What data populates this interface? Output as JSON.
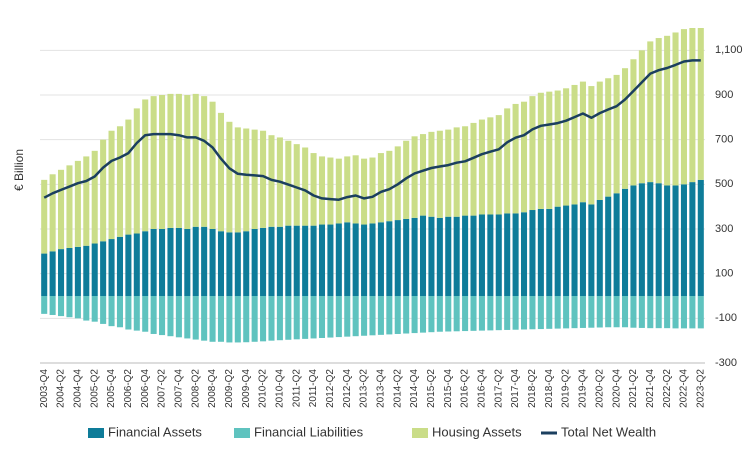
{
  "chart_data": {
    "type": "bar",
    "stacked": true,
    "y_label": "€ Billion",
    "categories": [
      "2003-Q4",
      null,
      "2004-Q2",
      null,
      "2004-Q4",
      null,
      "2005-Q2",
      null,
      "2005-Q4",
      null,
      "2006-Q2",
      null,
      "2006-Q4",
      null,
      "2007-Q2",
      null,
      "2007-Q4",
      null,
      "2008-Q2",
      null,
      "2008-Q4",
      null,
      "2009-Q2",
      null,
      "2009-Q4",
      null,
      "2010-Q2",
      null,
      "2010-Q4",
      null,
      "2011-Q2",
      null,
      "2011-Q4",
      null,
      "2012-Q2",
      null,
      "2012-Q4",
      null,
      "2013-Q2",
      null,
      "2013-Q4",
      null,
      "2014-Q2",
      null,
      "2014-Q4",
      null,
      "2015-Q2",
      null,
      "2015-Q4",
      null,
      "2016-Q2",
      null,
      "2016-Q4",
      null,
      "2017-Q2",
      null,
      "2017-Q4",
      null,
      "2018-Q2",
      null,
      "2018-Q4",
      null,
      "2019-Q2",
      null,
      "2019-Q4",
      null,
      "2020-Q2",
      null,
      "2020-Q4",
      null,
      "2021-Q2",
      null,
      "2021-Q4",
      null,
      "2022-Q2",
      null,
      "2022-Q4",
      null,
      "2023-Q2"
    ],
    "series": [
      {
        "name": "Financial Assets",
        "color": "#0e7c99",
        "type": "bar",
        "values": [
          190,
          200,
          210,
          215,
          220,
          225,
          235,
          245,
          255,
          265,
          275,
          280,
          290,
          300,
          300,
          305,
          305,
          300,
          310,
          310,
          300,
          290,
          285,
          285,
          290,
          300,
          305,
          310,
          310,
          315,
          315,
          315,
          315,
          320,
          320,
          325,
          330,
          325,
          320,
          325,
          330,
          335,
          340,
          345,
          350,
          360,
          355,
          350,
          355,
          355,
          360,
          360,
          365,
          365,
          365,
          370,
          370,
          375,
          385,
          390,
          390,
          400,
          405,
          410,
          420,
          410,
          430,
          445,
          460,
          480,
          495,
          505,
          510,
          505,
          495,
          495,
          500,
          510,
          520
        ]
      },
      {
        "name": "Financial Liabilities",
        "color": "#5fc3bf",
        "type": "bar",
        "values": [
          -80,
          -85,
          -90,
          -95,
          -100,
          -110,
          -115,
          -125,
          -135,
          -140,
          -150,
          -155,
          -160,
          -170,
          -175,
          -180,
          -185,
          -190,
          -195,
          -200,
          -205,
          -205,
          -208,
          -208,
          -207,
          -205,
          -203,
          -200,
          -198,
          -196,
          -194,
          -192,
          -190,
          -188,
          -186,
          -184,
          -182,
          -180,
          -178,
          -176,
          -174,
          -172,
          -170,
          -168,
          -166,
          -164,
          -162,
          -160,
          -159,
          -158,
          -157,
          -156,
          -155,
          -154,
          -153,
          -152,
          -151,
          -150,
          -149,
          -148,
          -147,
          -146,
          -145,
          -144,
          -143,
          -142,
          -141,
          -140,
          -140,
          -140,
          -142,
          -143,
          -144,
          -144,
          -144,
          -145,
          -145,
          -145,
          -145
        ]
      },
      {
        "name": "Housing Assets",
        "color": "#cadd88",
        "type": "bar",
        "values": [
          330,
          345,
          355,
          370,
          385,
          400,
          415,
          455,
          485,
          495,
          515,
          560,
          590,
          595,
          600,
          600,
          600,
          600,
          595,
          585,
          570,
          530,
          495,
          470,
          460,
          445,
          435,
          410,
          400,
          380,
          365,
          350,
          325,
          305,
          300,
          290,
          295,
          305,
          295,
          295,
          310,
          315,
          330,
          350,
          365,
          365,
          380,
          390,
          390,
          400,
          400,
          415,
          425,
          435,
          445,
          470,
          490,
          495,
          510,
          520,
          525,
          520,
          525,
          535,
          540,
          530,
          530,
          530,
          530,
          540,
          565,
          595,
          630,
          650,
          670,
          685,
          695,
          690,
          680
        ]
      },
      {
        "name": "Total Net Wealth",
        "color": "#1b3f5f",
        "type": "line",
        "values": [
          440,
          460,
          475,
          490,
          505,
          515,
          535,
          575,
          605,
          620,
          640,
          685,
          720,
          725,
          725,
          725,
          720,
          710,
          710,
          695,
          665,
          615,
          572,
          547,
          543,
          540,
          537,
          520,
          512,
          499,
          486,
          473,
          450,
          437,
          434,
          431,
          443,
          450,
          437,
          444,
          466,
          478,
          500,
          527,
          549,
          561,
          573,
          580,
          586,
          597,
          603,
          619,
          635,
          646,
          657,
          688,
          709,
          720,
          746,
          762,
          768,
          774,
          785,
          801,
          817,
          798,
          819,
          835,
          850,
          880,
          918,
          957,
          996,
          1011,
          1021,
          1035,
          1050,
          1055,
          1055
        ]
      }
    ],
    "ylim": [
      -300,
      1200
    ],
    "yticks": [
      -300,
      -100,
      100,
      300,
      500,
      700,
      900,
      {
        "value": 1100,
        "label": "1,100"
      }
    ],
    "grid": true
  }
}
